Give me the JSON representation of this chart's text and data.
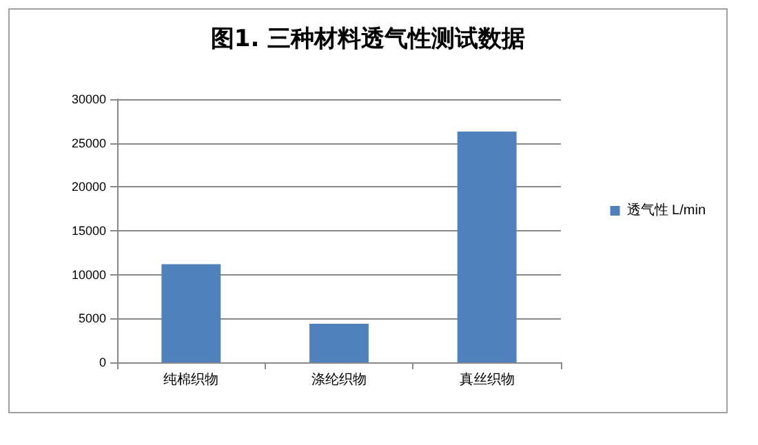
{
  "chart_data": {
    "type": "bar",
    "title": "图1. 三种材料透气性测试数据",
    "categories": [
      "纯棉织物",
      "涤纶织物",
      "真丝织物"
    ],
    "series": [
      {
        "name": "透气性 L/min",
        "color": "#4f81bd",
        "values": [
          11200,
          4400,
          26300
        ]
      }
    ],
    "ylim": [
      0,
      30000
    ],
    "yticks": [
      0,
      5000,
      10000,
      15000,
      20000,
      25000,
      30000
    ],
    "grid": "y",
    "legend": "right"
  }
}
